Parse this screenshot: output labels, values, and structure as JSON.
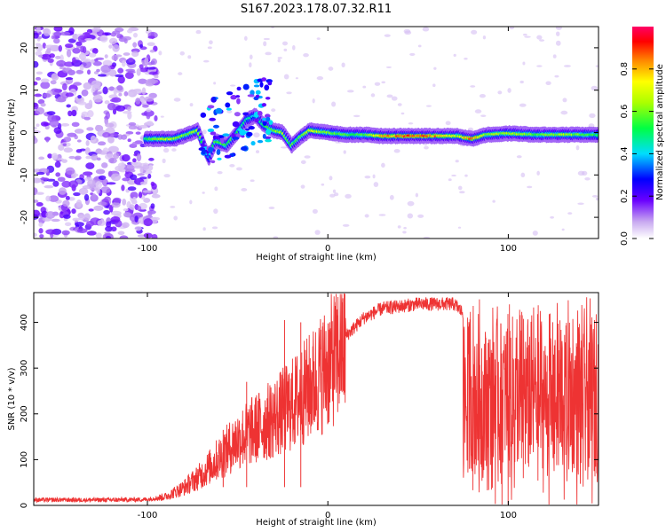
{
  "title": "S167.2023.178.07.32.R11",
  "chart_data": [
    {
      "type": "heatmap",
      "xlabel": "Height of straight line (km)",
      "ylabel": "Frequency (Hz)",
      "xlim": [
        -163,
        150
      ],
      "ylim": [
        -25,
        25
      ],
      "x_ticks": [
        -100,
        0,
        100
      ],
      "y_ticks": [
        -20,
        -10,
        0,
        10,
        20
      ],
      "grid": false,
      "colorbar": {
        "label": "Normalized spectral amplitude",
        "range": [
          0,
          1
        ],
        "ticks": [
          0.0,
          0.2,
          0.4,
          0.6,
          0.8
        ]
      },
      "ridge": [
        {
          "x": -100,
          "y": -1.5,
          "a": 0.55
        },
        {
          "x": -92,
          "y": -1.5,
          "a": 0.75
        },
        {
          "x": -85,
          "y": -1.5,
          "a": 0.7
        },
        {
          "x": -78,
          "y": -0.5,
          "a": 0.65
        },
        {
          "x": -72,
          "y": 0.5,
          "a": 0.7
        },
        {
          "x": -66,
          "y": -6,
          "a": 0.35
        },
        {
          "x": -62,
          "y": -2,
          "a": 0.6
        },
        {
          "x": -56,
          "y": -3,
          "a": 0.6
        },
        {
          "x": -50,
          "y": 0,
          "a": 0.55
        },
        {
          "x": -45,
          "y": 3,
          "a": 0.5
        },
        {
          "x": -40,
          "y": 4,
          "a": 0.45
        },
        {
          "x": -36,
          "y": 2,
          "a": 0.55
        },
        {
          "x": -30,
          "y": 0.5,
          "a": 0.65
        },
        {
          "x": -25,
          "y": 0,
          "a": 0.7
        },
        {
          "x": -20,
          "y": -3,
          "a": 0.6
        },
        {
          "x": -15,
          "y": -1,
          "a": 0.6
        },
        {
          "x": -10,
          "y": 0.5,
          "a": 0.75
        },
        {
          "x": 0,
          "y": 0,
          "a": 0.65
        },
        {
          "x": 10,
          "y": -0.5,
          "a": 0.6
        },
        {
          "x": 20,
          "y": -0.5,
          "a": 0.6
        },
        {
          "x": 30,
          "y": -0.8,
          "a": 0.85
        },
        {
          "x": 45,
          "y": -0.8,
          "a": 0.95
        },
        {
          "x": 60,
          "y": -0.8,
          "a": 0.9
        },
        {
          "x": 72,
          "y": -0.8,
          "a": 0.7
        },
        {
          "x": 80,
          "y": -1.5,
          "a": 0.95
        },
        {
          "x": 88,
          "y": -0.5,
          "a": 0.65
        },
        {
          "x": 100,
          "y": -0.2,
          "a": 0.7
        },
        {
          "x": 115,
          "y": -0.5,
          "a": 0.6
        },
        {
          "x": 130,
          "y": -0.5,
          "a": 0.7
        },
        {
          "x": 150,
          "y": -0.5,
          "a": 0.55
        }
      ],
      "noise_region_end_x": -95
    },
    {
      "type": "line",
      "xlabel": "Height of straight line (km)",
      "ylabel": "SNR (10 * v/v)",
      "xlim": [
        -163,
        150
      ],
      "ylim": [
        0,
        465
      ],
      "x_ticks": [
        -100,
        0,
        100
      ],
      "y_ticks": [
        0,
        100,
        200,
        300,
        400
      ],
      "grid": false,
      "color": "#ee3333",
      "envelope": {
        "x": [
          -163,
          -120,
          -100,
          -90,
          -80,
          -70,
          -60,
          -50,
          -40,
          -30,
          -20,
          -10,
          0,
          10,
          20,
          30,
          40,
          50,
          60,
          70,
          75,
          80,
          90,
          100,
          120,
          150
        ],
        "y": [
          12,
          12,
          13,
          20,
          40,
          70,
          110,
          150,
          175,
          200,
          230,
          270,
          320,
          370,
          410,
          430,
          435,
          440,
          440,
          440,
          420,
          270,
          270,
          270,
          270,
          270
        ]
      },
      "spikes": [
        {
          "x": -24,
          "y": 405
        },
        {
          "x": -15,
          "y": 400
        },
        {
          "x": -45,
          "y": 270
        },
        {
          "x": -58,
          "y": 165
        }
      ]
    }
  ]
}
